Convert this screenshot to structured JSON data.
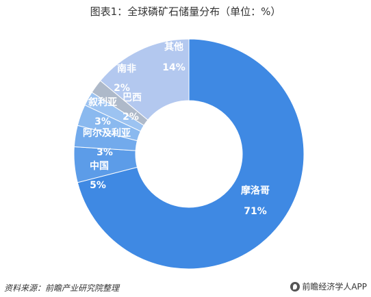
{
  "title": "图表1：全球磷矿石储量分布（单位：%）",
  "footer": {
    "source": "资料来源：前瞻产业研究院整理",
    "brand": "前瞻经济学人APP"
  },
  "chart_data": {
    "type": "pie",
    "donut": true,
    "categories": [
      "摩洛哥",
      "中国",
      "阿尔及利亚",
      "叙利亚",
      "巴西",
      "南非",
      "其他"
    ],
    "values": [
      71,
      5,
      3,
      3,
      2,
      2,
      14
    ],
    "value_labels": [
      "71%",
      "5%",
      "3%",
      "3%",
      "2%",
      "2%",
      "14%"
    ],
    "colors": [
      "#3f89e3",
      "#5c9ce8",
      "#72aaec",
      "#8ab9ef",
      "#9cc3f1",
      "#aeb9c9",
      "#b3c8ef"
    ],
    "label_color": "#ffffff"
  }
}
